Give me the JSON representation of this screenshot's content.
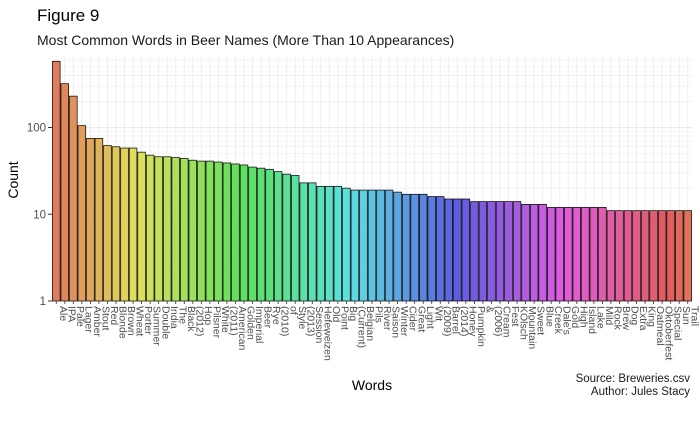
{
  "figure": {
    "label": "Figure 9",
    "caption_source": "Source: Breweries.csv",
    "caption_author": "Author: Jules Stacy"
  },
  "chart_data": {
    "type": "bar",
    "title": "Most Common Words in Beer Names (More Than 10 Appearances)",
    "xlabel": "Words",
    "ylabel": "Count",
    "y_scale": "log10",
    "ylim": [
      1,
      650
    ],
    "y_ticks": [
      1,
      10,
      100
    ],
    "y_tick_labels": [
      "1",
      "10",
      "100"
    ],
    "grid": true,
    "legend": "none",
    "bar_outline_color": "#000000",
    "panel_background": "#ffffff",
    "grid_color": "#ebebeb",
    "categories": [
      "Ale",
      "IPA",
      "Pale",
      "Lager",
      "Amber",
      "Stout",
      "Red",
      "Blonde",
      "Brown",
      "Wheat",
      "Porter",
      "Summer",
      "Double",
      "India",
      "The",
      "Black",
      "(2012)",
      "Hop",
      "Pilsner",
      "White",
      "(2011)",
      "American",
      "Golden",
      "Imperial",
      "Beer",
      "Rye",
      "(2010)",
      "of",
      "Style",
      "(2013)",
      "Session",
      "Hefeweizen",
      "Old",
      "Point",
      "Big",
      "(Current)",
      "Belgian",
      "Pils",
      "River",
      "Saison",
      "Winter",
      "Cider",
      "Great",
      "Light",
      "Wit",
      "(2009)",
      "Barrel",
      "(2014)",
      "Honey",
      "Pumpkin",
      "&",
      "(2006)",
      "Cream",
      "Fest",
      "Kölsch",
      "Mountain",
      "Sweet",
      "Blue",
      "Creek",
      "Dale's",
      "Gold",
      "High",
      "Island",
      "Lake",
      "Mild",
      "Rock",
      "Brew",
      "Dog",
      "Extra",
      "King",
      "Oatmeal",
      "Oktoberfest",
      "Special",
      "Sun",
      "Trail"
    ],
    "values": [
      580,
      320,
      230,
      105,
      75,
      75,
      62,
      60,
      58,
      58,
      52,
      48,
      46,
      46,
      45,
      44,
      42,
      41,
      41,
      40,
      39,
      38,
      37,
      35,
      34,
      33,
      31,
      29,
      28,
      23,
      23,
      21,
      21,
      21,
      20,
      19,
      19,
      19,
      19,
      19,
      18,
      17,
      17,
      17,
      16,
      16,
      15,
      15,
      15,
      14,
      14,
      14,
      14,
      14,
      14,
      13,
      13,
      13,
      12,
      12,
      12,
      12,
      12,
      12,
      12,
      11,
      11,
      11,
      11,
      11,
      11,
      11,
      11,
      11,
      11
    ],
    "x_tick_labels": [
      "Ale",
      "IPA",
      "Pale",
      "Lager",
      "Amber",
      "Stout",
      "Red",
      "Blonde",
      "Brown",
      "Wheat",
      "Porter",
      "Summer",
      "Double",
      "India",
      "The",
      "Black",
      "(2012)",
      "Hop",
      "Pilsner",
      "White",
      "(2011)",
      "American",
      "Golden",
      "Imperial",
      "Beer",
      "Rye",
      "(2010)",
      "of",
      "Style",
      "(2013)",
      "Session",
      "Hefeweizen",
      "Old",
      "Point",
      "Big",
      "(Current)",
      "Belgian",
      "Pils",
      "River",
      "Saison",
      "Winter",
      "Cider",
      "Great",
      "Light",
      "Wit",
      "(2009)",
      "Barrel",
      "(2014)",
      "Honey",
      "Pumpkin",
      "&",
      "(2006)",
      "Cream",
      "Fest",
      "KÖlsch",
      "Mountain",
      "Sweet",
      "Blue",
      "Creek",
      "Dale's",
      "Gold",
      "High",
      "Island",
      "Lake",
      "Mild",
      "Rock",
      "Brew",
      "Dog",
      "Extra",
      "King",
      "Oatmeal",
      "Oktoberfest",
      "Special",
      "Sun",
      "Trail"
    ]
  }
}
